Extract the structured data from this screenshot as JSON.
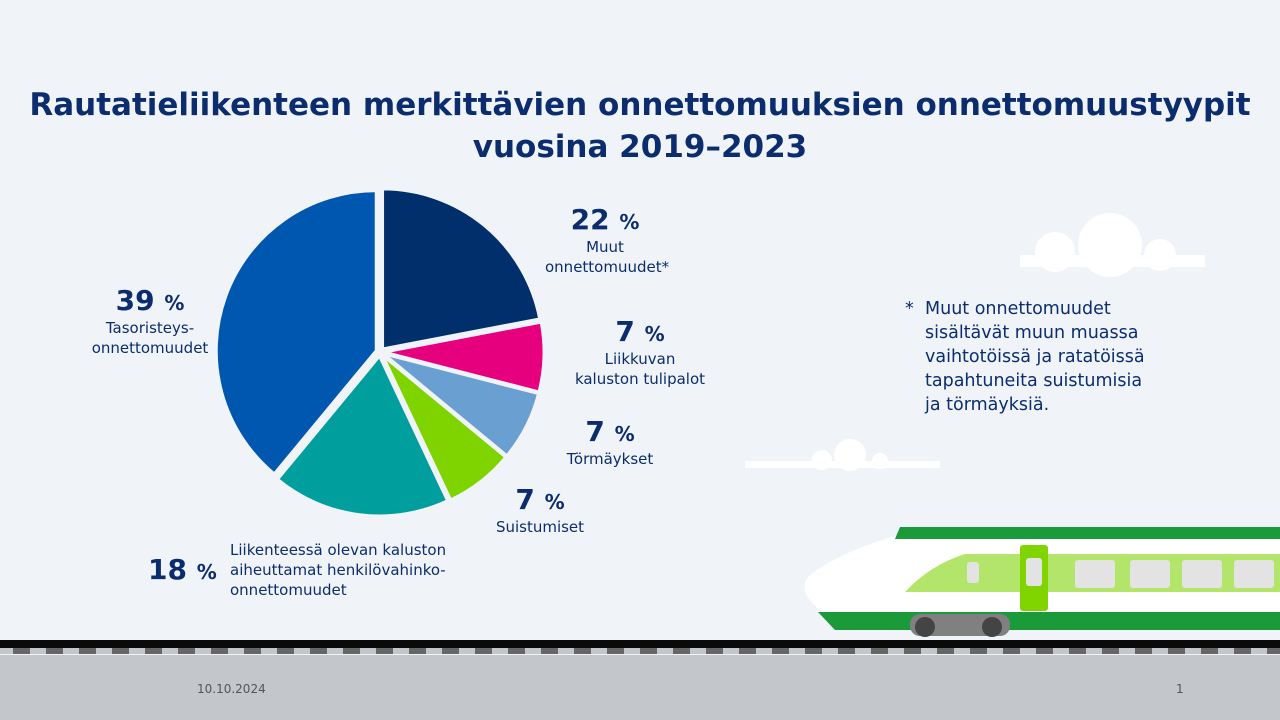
{
  "chart_data": {
    "type": "pie",
    "title": "Rautatieliikenteen merkittävien onnettomuuksien onnettomuustyypit vuosina 2019–2023",
    "slices": [
      {
        "label": "Muut onnettomuudet*",
        "value": 22,
        "display": "22",
        "color": "#002f6c"
      },
      {
        "label": "Liikkuvan kaluston tulipalot",
        "value": 7,
        "display": "7",
        "color": "#e6007e"
      },
      {
        "label": "Törmäykset",
        "value": 7,
        "display": "7",
        "color": "#6a9fd2"
      },
      {
        "label": "Suistumiset",
        "value": 7,
        "display": "7",
        "color": "#7fd400"
      },
      {
        "label": "Liikenteessä olevan kaluston aiheuttamat henkilövahinko-onnettomuudet",
        "value": 18,
        "display": "18",
        "color": "#009f9d"
      },
      {
        "label": "Tasoristeys-onnettomuudet",
        "value": 39,
        "display": "39",
        "color": "#0057b0"
      }
    ],
    "unit": "%"
  },
  "labels": {
    "s0": [
      "Muut",
      "onnettomuudet*"
    ],
    "s1": [
      "Liikkuvan",
      "kaluston tulipalot"
    ],
    "s2": [
      "Törmäykset"
    ],
    "s3": [
      "Suistumiset"
    ],
    "s4": [
      "Liikenteessä olevan kaluston",
      "aiheuttamat henkilövahinko-",
      "onnettomuudet"
    ],
    "s5": [
      "Tasoristeys-",
      "onnettomuudet"
    ]
  },
  "note": {
    "star": "*",
    "lines": [
      "Muut onnettomuudet",
      "sisältävät muun muassa",
      "vaihtotöissä ja ratatöissä",
      "tapahtuneita suistumisia",
      "ja törmäyksiä."
    ]
  },
  "footer": {
    "date": "10.10.2024",
    "page": "1"
  }
}
